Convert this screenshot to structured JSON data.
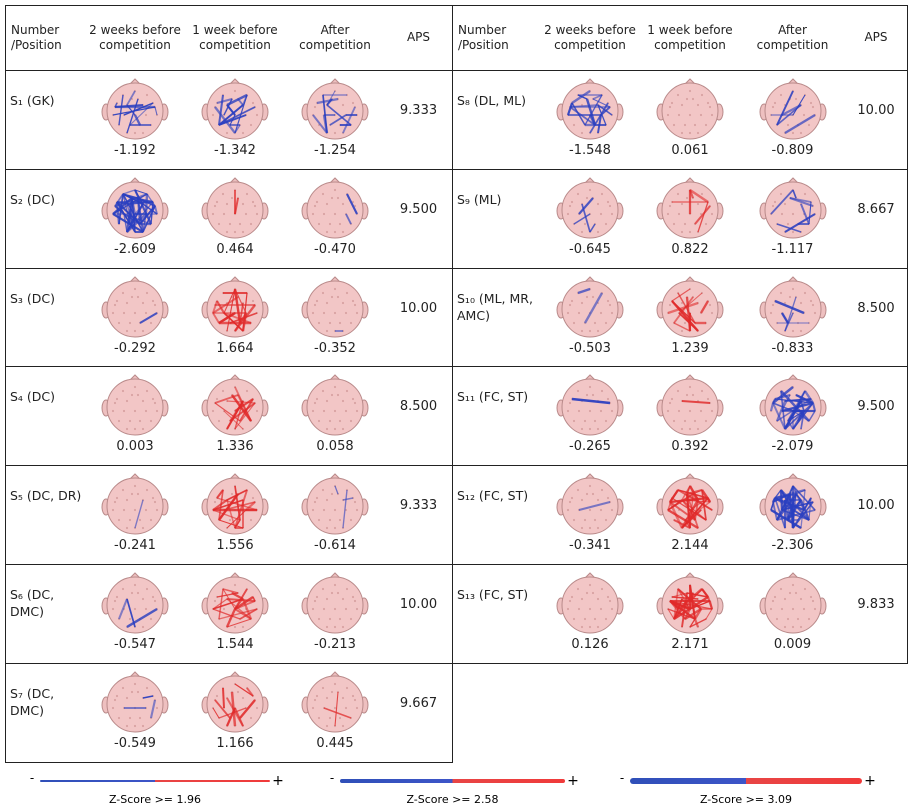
{
  "tables": [
    {
      "header": [
        "Number /Position",
        "2 weeks before competition",
        "1 week before competition",
        "After competition",
        "APS"
      ],
      "rows": [
        [
          "S₁ (GK)",
          "-1.192",
          "-1.342",
          "-1.254",
          "9.333"
        ],
        [
          "S₂ (DC)",
          "-2.609",
          "0.464",
          "-0.470",
          "9.500"
        ],
        [
          "S₃ (DC)",
          "-0.292",
          "1.664",
          "-0.352",
          "10.00"
        ],
        [
          "S₄ (DC)",
          "0.003",
          "1.336",
          "0.058",
          "8.500"
        ],
        [
          "S₅ (DC, DR)",
          "-0.241",
          "1.556",
          "-0.614",
          "9.333"
        ],
        [
          "S₆ (DC, DMC)",
          "-0.547",
          "1.544",
          "-0.213",
          "10.00"
        ],
        [
          "S₇ (DC, DMC)",
          "-0.549",
          "1.166",
          "0.445",
          "9.667"
        ]
      ]
    },
    {
      "header": [
        "Number /Position",
        "2 weeks before competition",
        "1 week before competition",
        "After competition",
        "APS"
      ],
      "rows": [
        [
          "S₈ (DL, ML)",
          "-1.548",
          "0.061",
          "-0.809",
          "10.00"
        ],
        [
          "S₉ (ML)",
          "-0.645",
          "0.822",
          "-1.117",
          "8.667"
        ],
        [
          "S₁₀ (ML, MR, AMC)",
          "-0.503",
          "1.239",
          "-0.833",
          "8.500"
        ],
        [
          "S₁₁ (FC, ST)",
          "-0.265",
          "0.392",
          "-2.079",
          "9.500"
        ],
        [
          "S₁₂ (FC, ST)",
          "-0.341",
          "2.144",
          "-2.306",
          "10.00"
        ],
        [
          "S₁₃ (FC, ST)",
          "0.126",
          "2.171",
          "0.009",
          "9.833"
        ]
      ]
    }
  ],
  "legend": [
    {
      "minus": "-",
      "plus": "+",
      "label": "Z-Score >= 1.96"
    },
    {
      "minus": "-",
      "plus": "+",
      "label": "Z-Score >= 2.58"
    },
    {
      "minus": "-",
      "plus": "+",
      "label": "Z-Score >= 3.09"
    }
  ]
}
